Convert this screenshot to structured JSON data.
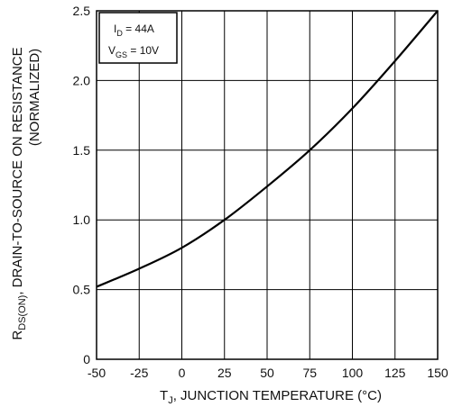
{
  "chart_data": {
    "type": "line",
    "xlabel": {
      "main": "T",
      "sub": "J",
      "rest": ", JUNCTION TEMPERATURE (°C)"
    },
    "ylabel": {
      "line1_main": "R",
      "line1_sub": "DS(ON)",
      "line1_rest": ", DRAIN-TO-SOURCE  ON  RESISTANCE",
      "line2": "(NORMALIZED)"
    },
    "xlim": [
      -50,
      150
    ],
    "ylim": [
      0,
      2.5
    ],
    "x_ticks": [
      "-50",
      "-25",
      "0",
      "25",
      "50",
      "75",
      "100",
      "125",
      "150"
    ],
    "y_ticks": [
      "0",
      "0.5",
      "1.0",
      "1.5",
      "2.0",
      "2.5"
    ],
    "grid": true,
    "legend_position": "top-left",
    "conditions": [
      {
        "main": "I",
        "sub": "D",
        "rest": " = 44A"
      },
      {
        "main": "V",
        "sub": "GS",
        "rest": " = 10V"
      }
    ],
    "series": [
      {
        "x": [
          -50,
          -25,
          0,
          25,
          50,
          75,
          100,
          125,
          150
        ],
        "y": [
          0.52,
          0.65,
          0.8,
          1.0,
          1.24,
          1.5,
          1.8,
          2.14,
          2.5
        ]
      }
    ]
  }
}
